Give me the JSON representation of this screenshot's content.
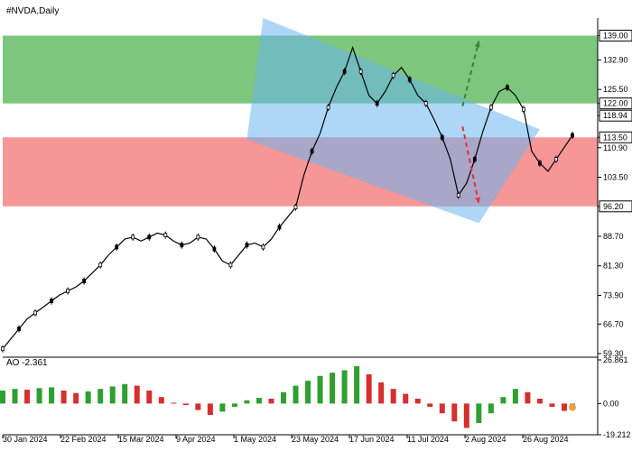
{
  "chart_data": {
    "type": "candlestick",
    "title": "#NVDA,Daily",
    "x_ticks": [
      "30 Jan 2024",
      "22 Feb 2024",
      "15 Mar 2024",
      "9 Apr 2024",
      "1 May 2024",
      "23 May 2024",
      "17 Jun 2024",
      "11 Jul 2024",
      "2 Aug 2024",
      "26 Aug 2024"
    ],
    "price_axis": {
      "range": [
        59.3,
        143.4
      ],
      "ticks": [
        "139.00",
        "132.90",
        "125.50",
        "122.00",
        "118.94",
        "113.50",
        "110.90",
        "103.50",
        "96.20",
        "88.70",
        "81.30",
        "73.90",
        "66.70",
        "59.30"
      ],
      "highlighted": [
        {
          "label": "139.00",
          "value": 139.0
        },
        {
          "label": "122.00",
          "value": 122.0
        },
        {
          "label": "118.94",
          "value": 118.94
        },
        {
          "label": "113.50",
          "value": 113.5
        },
        {
          "label": "96.20",
          "value": 96.2
        }
      ]
    },
    "zones": [
      {
        "name": "resistance-zone",
        "from": 122.0,
        "to": 139.0,
        "color": "#5cb85c"
      },
      {
        "name": "support-zone",
        "from": 96.2,
        "to": 113.5,
        "color": "#f47c7c"
      }
    ],
    "channel": {
      "color": "#6cb4f0",
      "points": [
        {
          "day": 0,
          "price": 143.4
        },
        {
          "day": 68,
          "price": 115.5
        },
        {
          "day": 53,
          "price": 92.0
        },
        {
          "day": -4,
          "price": 113.0
        }
      ]
    },
    "forecast": [
      {
        "name": "bullish",
        "color": "#2e8b2e",
        "from": {
          "day": 49,
          "price": 121.3
        },
        "to": {
          "day": 53,
          "price": 137.6
        }
      },
      {
        "name": "bearish",
        "color": "#e53030",
        "from": {
          "day": 49,
          "price": 116.2
        },
        "to": {
          "day": 53,
          "price": 97.0
        }
      }
    ],
    "prices": [
      {
        "day": -64,
        "price": 60.5
      },
      {
        "day": -62,
        "price": 63.0
      },
      {
        "day": -60,
        "price": 65.5
      },
      {
        "day": -58,
        "price": 68.0
      },
      {
        "day": -56,
        "price": 69.5
      },
      {
        "day": -54,
        "price": 71.0
      },
      {
        "day": -52,
        "price": 72.5
      },
      {
        "day": -50,
        "price": 74.0
      },
      {
        "day": -48,
        "price": 75.0
      },
      {
        "day": -46,
        "price": 76.0
      },
      {
        "day": -44,
        "price": 77.5
      },
      {
        "day": -42,
        "price": 79.5
      },
      {
        "day": -40,
        "price": 81.5
      },
      {
        "day": -38,
        "price": 84.0
      },
      {
        "day": -36,
        "price": 86.0
      },
      {
        "day": -34,
        "price": 88.0
      },
      {
        "day": -32,
        "price": 88.5
      },
      {
        "day": -30,
        "price": 87.5
      },
      {
        "day": -28,
        "price": 88.5
      },
      {
        "day": -26,
        "price": 89.5
      },
      {
        "day": -24,
        "price": 89.0
      },
      {
        "day": -22,
        "price": 87.5
      },
      {
        "day": -20,
        "price": 86.5
      },
      {
        "day": -18,
        "price": 87.0
      },
      {
        "day": -16,
        "price": 88.5
      },
      {
        "day": -14,
        "price": 88.0
      },
      {
        "day": -12,
        "price": 85.5
      },
      {
        "day": -10,
        "price": 82.5
      },
      {
        "day": -8,
        "price": 81.5
      },
      {
        "day": -6,
        "price": 84.0
      },
      {
        "day": -4,
        "price": 86.5
      },
      {
        "day": -2,
        "price": 87.0
      },
      {
        "day": 0,
        "price": 86.0
      },
      {
        "day": 2,
        "price": 88.0
      },
      {
        "day": 4,
        "price": 91.0
      },
      {
        "day": 6,
        "price": 93.5
      },
      {
        "day": 8,
        "price": 96.0
      },
      {
        "day": 10,
        "price": 104.0
      },
      {
        "day": 12,
        "price": 110.0
      },
      {
        "day": 14,
        "price": 114.5
      },
      {
        "day": 16,
        "price": 121.0
      },
      {
        "day": 18,
        "price": 126.0
      },
      {
        "day": 20,
        "price": 130.0
      },
      {
        "day": 22,
        "price": 136.0
      },
      {
        "day": 24,
        "price": 130.0
      },
      {
        "day": 26,
        "price": 124.0
      },
      {
        "day": 28,
        "price": 122.0
      },
      {
        "day": 30,
        "price": 125.0
      },
      {
        "day": 32,
        "price": 129.0
      },
      {
        "day": 34,
        "price": 131.0
      },
      {
        "day": 36,
        "price": 128.0
      },
      {
        "day": 38,
        "price": 124.0
      },
      {
        "day": 40,
        "price": 122.0
      },
      {
        "day": 42,
        "price": 118.0
      },
      {
        "day": 44,
        "price": 113.5
      },
      {
        "day": 46,
        "price": 108.0
      },
      {
        "day": 48,
        "price": 99.0
      },
      {
        "day": 50,
        "price": 102.0
      },
      {
        "day": 52,
        "price": 108.0
      },
      {
        "day": 54,
        "price": 115.0
      },
      {
        "day": 56,
        "price": 121.0
      },
      {
        "day": 58,
        "price": 125.0
      },
      {
        "day": 60,
        "price": 126.0
      },
      {
        "day": 62,
        "price": 124.0
      },
      {
        "day": 64,
        "price": 120.5
      },
      {
        "day": 66,
        "price": 110.0
      },
      {
        "day": 68,
        "price": 107.0
      },
      {
        "day": 70,
        "price": 105.0
      },
      {
        "day": 72,
        "price": 108.0
      },
      {
        "day": 74,
        "price": 111.0
      },
      {
        "day": 76,
        "price": 114.0
      }
    ],
    "indicator": {
      "name": "AO",
      "label": "AO -2.361",
      "value": -2.361,
      "range": [
        -19.212,
        26.861
      ],
      "ticks": [
        "26.861",
        "0.00",
        "-19.212"
      ],
      "bars": [
        {
          "day": -64,
          "value": 8.0
        },
        {
          "day": -61,
          "value": 9.0
        },
        {
          "day": -58,
          "value": 8.5
        },
        {
          "day": -55,
          "value": 9.5
        },
        {
          "day": -52,
          "value": 10.0
        },
        {
          "day": -49,
          "value": 8.0
        },
        {
          "day": -46,
          "value": 6.5
        },
        {
          "day": -43,
          "value": 7.5
        },
        {
          "day": -40,
          "value": 9.0
        },
        {
          "day": -37,
          "value": 10.5
        },
        {
          "day": -34,
          "value": 12.0
        },
        {
          "day": -31,
          "value": 11.0
        },
        {
          "day": -28,
          "value": 8.0
        },
        {
          "day": -25,
          "value": 4.0
        },
        {
          "day": -22,
          "value": 0.5
        },
        {
          "day": -19,
          "value": -1.0
        },
        {
          "day": -16,
          "value": -4.0
        },
        {
          "day": -13,
          "value": -7.0
        },
        {
          "day": -10,
          "value": -5.0
        },
        {
          "day": -7,
          "value": -2.0
        },
        {
          "day": -4,
          "value": 2.0
        },
        {
          "day": -1,
          "value": 3.5
        },
        {
          "day": 2,
          "value": 3.0
        },
        {
          "day": 5,
          "value": 7.0
        },
        {
          "day": 8,
          "value": 11.0
        },
        {
          "day": 11,
          "value": 14.0
        },
        {
          "day": 14,
          "value": 17.0
        },
        {
          "day": 17,
          "value": 19.0
        },
        {
          "day": 20,
          "value": 20.5
        },
        {
          "day": 23,
          "value": 23.0
        },
        {
          "day": 26,
          "value": 18.0
        },
        {
          "day": 29,
          "value": 13.0
        },
        {
          "day": 32,
          "value": 9.0
        },
        {
          "day": 35,
          "value": 6.0
        },
        {
          "day": 38,
          "value": 3.0
        },
        {
          "day": 41,
          "value": -2.0
        },
        {
          "day": 44,
          "value": -6.0
        },
        {
          "day": 47,
          "value": -11.0
        },
        {
          "day": 50,
          "value": -15.0
        },
        {
          "day": 53,
          "value": -12.0
        },
        {
          "day": 56,
          "value": -6.0
        },
        {
          "day": 59,
          "value": 4.0
        },
        {
          "day": 62,
          "value": 9.0
        },
        {
          "day": 65,
          "value": 7.0
        },
        {
          "day": 68,
          "value": 3.0
        },
        {
          "day": 71,
          "value": -2.0
        },
        {
          "day": 74,
          "value": -4.5
        },
        {
          "day": 76,
          "value": -2.361
        }
      ]
    }
  }
}
